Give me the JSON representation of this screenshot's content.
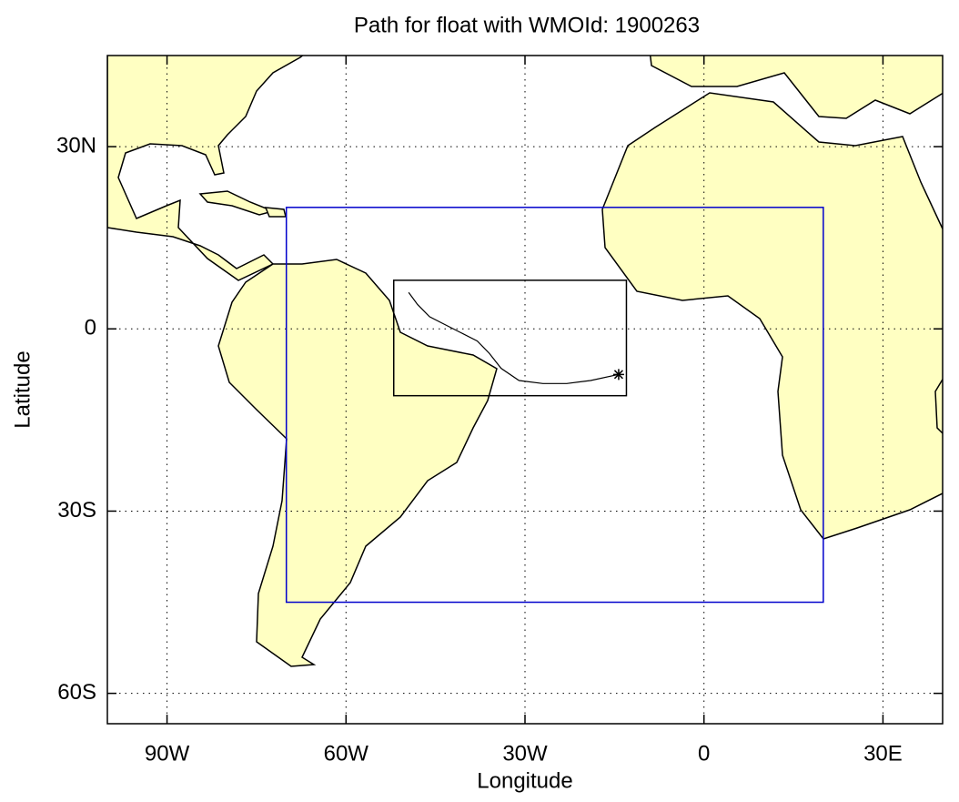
{
  "chart_data": {
    "type": "map",
    "title": "Path for float with WMOId: 1900263",
    "x_label": "Longitude",
    "y_label": "Latitude",
    "xlim": [
      -100,
      40
    ],
    "ylim": [
      -65,
      45
    ],
    "xticks": [
      {
        "value": -90,
        "label": "90W"
      },
      {
        "value": -60,
        "label": "60W"
      },
      {
        "value": -30,
        "label": "30W"
      },
      0,
      {
        "value": 30,
        "label": "30E"
      }
    ],
    "yticks": [
      {
        "value": 30,
        "label": "30N"
      },
      0,
      {
        "value": -30,
        "label": "30S"
      },
      {
        "value": -60,
        "label": "60S"
      }
    ],
    "grid": true,
    "regions": [
      {
        "color": "#0000cc",
        "lon": [
          -70,
          20
        ],
        "lat": [
          -45,
          20
        ]
      },
      {
        "color": "#000000",
        "lon": [
          -52,
          -13
        ],
        "lat": [
          -11,
          8
        ]
      }
    ],
    "track": {
      "color": "#000000",
      "lon": [
        -49.5,
        -48,
        -46,
        -44,
        -41,
        -38,
        -36,
        -34,
        -31,
        -27,
        -23,
        -19,
        -14.3
      ],
      "lat": [
        6,
        4,
        2,
        1,
        -0.5,
        -2,
        -4,
        -6.5,
        -8.5,
        -9,
        -9,
        -8.5,
        -7.5
      ]
    }
  }
}
